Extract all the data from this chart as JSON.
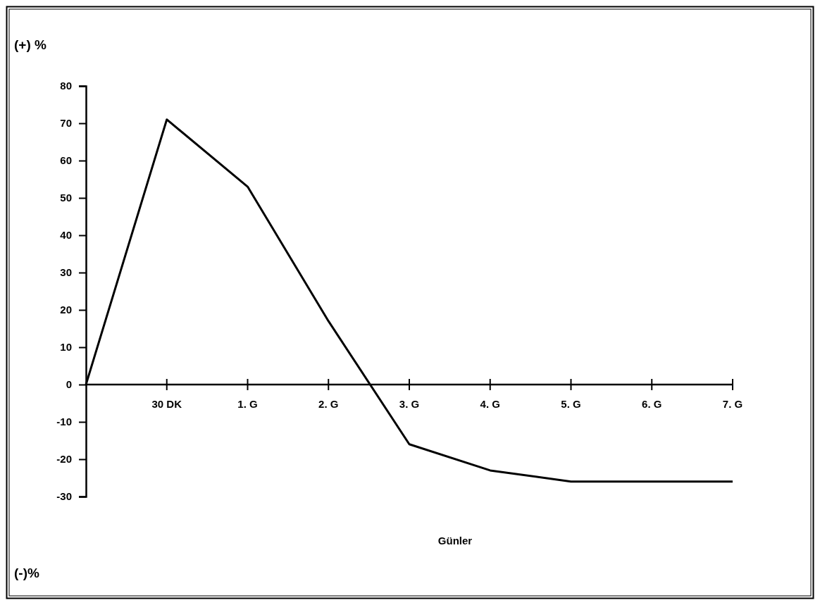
{
  "chart_data": {
    "type": "line",
    "ylabel": "(+) %",
    "xlabel": "Günler",
    "annotations": [
      "(-)%"
    ],
    "categories": [
      null,
      "30 DK",
      "1. G",
      "2. G",
      "3. G",
      "4. G",
      "5. G",
      "6. G",
      "7. G"
    ],
    "series": [
      {
        "color": "#000000",
        "values": [
          0,
          71,
          53,
          17,
          -16,
          -23,
          -26,
          -26,
          -26
        ]
      }
    ],
    "ylim": [
      -30,
      80
    ],
    "yticks": [
      80,
      70,
      60,
      50,
      40,
      30,
      20,
      10,
      0,
      -10,
      -20,
      -30
    ],
    "grid": false,
    "marker": "none",
    "line_style": "solid"
  }
}
